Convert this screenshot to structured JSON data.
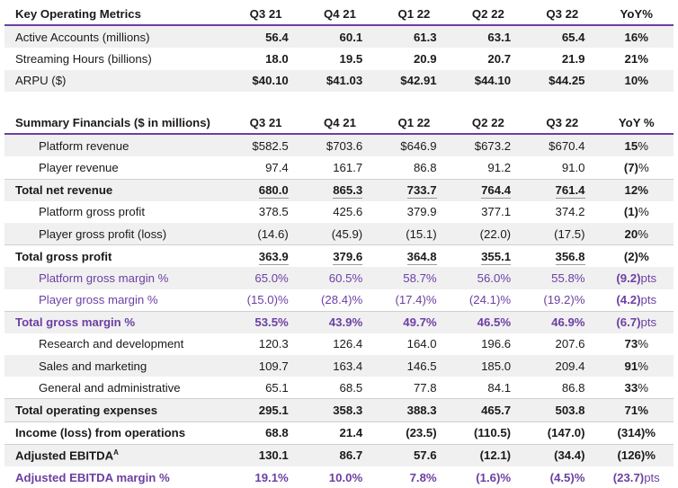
{
  "key_metrics": {
    "title": "Key Operating Metrics",
    "columns": [
      "Q3 21",
      "Q4 21",
      "Q1 22",
      "Q2 22",
      "Q3 22",
      "YoY%"
    ],
    "rows": [
      {
        "label": "Active Accounts (millions)",
        "values": [
          "56.4",
          "60.1",
          "61.3",
          "63.1",
          "65.4"
        ],
        "yoy": "16%"
      },
      {
        "label": "Streaming Hours (billions)",
        "values": [
          "18.0",
          "19.5",
          "20.9",
          "20.7",
          "21.9"
        ],
        "yoy": "21%"
      },
      {
        "label": "ARPU ($)",
        "values": [
          "$40.10",
          "$41.03",
          "$42.91",
          "$44.10",
          "$44.25"
        ],
        "yoy": "10%"
      }
    ]
  },
  "summary_financials": {
    "title": "Summary Financials ($ in millions)",
    "columns": [
      "Q3 21",
      "Q4 21",
      "Q1 22",
      "Q2 22",
      "Q3 22",
      "YoY %"
    ],
    "rows": [
      {
        "label": "Platform revenue",
        "values": [
          "$582.5",
          "$703.6",
          "$646.9",
          "$673.2",
          "$670.4"
        ],
        "yoy_num": "15",
        "yoy_suffix": "%"
      },
      {
        "label": "Player revenue",
        "values": [
          "97.4",
          "161.7",
          "86.8",
          "91.2",
          "91.0"
        ],
        "yoy_num": "(7)",
        "yoy_suffix": "%"
      },
      {
        "label": "Total net revenue",
        "values": [
          "680.0",
          "865.3",
          "733.7",
          "764.4",
          "761.4"
        ],
        "yoy_num": "12",
        "yoy_suffix": "%"
      },
      {
        "label": "Platform gross profit",
        "values": [
          "378.5",
          "425.6",
          "379.9",
          "377.1",
          "374.2"
        ],
        "yoy_num": "(1)",
        "yoy_suffix": "%"
      },
      {
        "label": "Player gross profit (loss)",
        "values": [
          "(14.6)",
          "(45.9)",
          "(15.1)",
          "(22.0)",
          "(17.5)"
        ],
        "yoy_num": "20",
        "yoy_suffix": "%"
      },
      {
        "label": "Total gross profit",
        "values": [
          "363.9",
          "379.6",
          "364.8",
          "355.1",
          "356.8"
        ],
        "yoy_num": "(2)",
        "yoy_suffix": "%"
      },
      {
        "label": "Platform gross margin %",
        "values": [
          "65.0%",
          "60.5%",
          "58.7%",
          "56.0%",
          "55.8%"
        ],
        "yoy_num": "(9.2)",
        "yoy_suffix": "pts"
      },
      {
        "label": "Player gross margin %",
        "values": [
          "(15.0)%",
          "(28.4)%",
          "(17.4)%",
          "(24.1)%",
          "(19.2)%"
        ],
        "yoy_num": "(4.2)",
        "yoy_suffix": "pts"
      },
      {
        "label": "Total gross margin %",
        "values": [
          "53.5%",
          "43.9%",
          "49.7%",
          "46.5%",
          "46.9%"
        ],
        "yoy_num": "(6.7)",
        "yoy_suffix": "pts"
      },
      {
        "label": "Research and development",
        "values": [
          "120.3",
          "126.4",
          "164.0",
          "196.6",
          "207.6"
        ],
        "yoy_num": "73",
        "yoy_suffix": "%"
      },
      {
        "label": "Sales and marketing",
        "values": [
          "109.7",
          "163.4",
          "146.5",
          "185.0",
          "209.4"
        ],
        "yoy_num": "91",
        "yoy_suffix": "%"
      },
      {
        "label": "General and administrative",
        "values": [
          "65.1",
          "68.5",
          "77.8",
          "84.1",
          "86.8"
        ],
        "yoy_num": "33",
        "yoy_suffix": "%"
      },
      {
        "label": "Total operating expenses",
        "values": [
          "295.1",
          "358.3",
          "388.3",
          "465.7",
          "503.8"
        ],
        "yoy_num": "71",
        "yoy_suffix": "%"
      },
      {
        "label": "Income (loss) from operations",
        "values": [
          "68.8",
          "21.4",
          "(23.5)",
          "(110.5)",
          "(147.0)"
        ],
        "yoy_num": "(314)",
        "yoy_suffix": "%"
      },
      {
        "label": "Adjusted EBITDA",
        "label_sup": "A",
        "values": [
          "130.1",
          "86.7",
          "57.6",
          "(12.1)",
          "(34.4)"
        ],
        "yoy_num": "(126)",
        "yoy_suffix": "%"
      },
      {
        "label": "Adjusted EBITDA margin %",
        "values": [
          "19.1%",
          "10.0%",
          "7.8%",
          "(1.6)%",
          "(4.5)%"
        ],
        "yoy_num": "(23.7)",
        "yoy_suffix": "pts"
      }
    ]
  },
  "colors": {
    "accent_purple": "#6c3fa2",
    "row_shade": "#f0f0f1",
    "text": "#1a1a1a"
  }
}
